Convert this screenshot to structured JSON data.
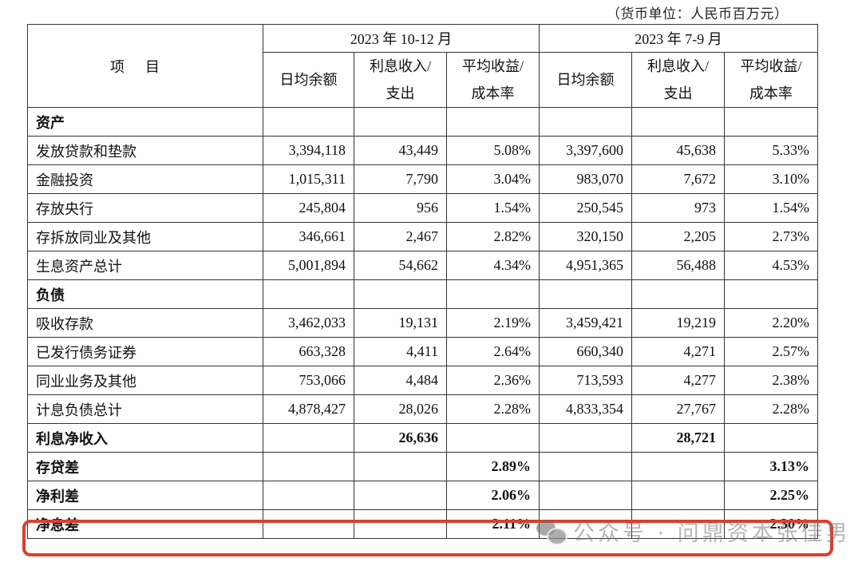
{
  "unit_note": "（货币单位：人民币百万元）",
  "header": {
    "item_label": "项目",
    "periods": [
      {
        "label": "2023 年 10-12 月"
      },
      {
        "label": "2023 年 7-9 月"
      }
    ],
    "columns": [
      {
        "line1": "日均余额",
        "line2": ""
      },
      {
        "line1": "利息收入/",
        "line2": "支出"
      },
      {
        "line1": "平均收益/",
        "line2": "成本率"
      },
      {
        "line1": "日均余额",
        "line2": ""
      },
      {
        "line1": "利息收入/",
        "line2": "支出"
      },
      {
        "line1": "平均收益/",
        "line2": "成本率"
      }
    ]
  },
  "rows": [
    {
      "label": "资产",
      "values": [
        "",
        "",
        "",
        "",
        "",
        ""
      ]
    },
    {
      "label": "发放贷款和垫款",
      "values": [
        "3,394,118",
        "43,449",
        "5.08%",
        "3,397,600",
        "45,638",
        "5.33%"
      ]
    },
    {
      "label": "金融投资",
      "values": [
        "1,015,311",
        "7,790",
        "3.04%",
        "983,070",
        "7,672",
        "3.10%"
      ]
    },
    {
      "label": "存放央行",
      "values": [
        "245,804",
        "956",
        "1.54%",
        "250,545",
        "973",
        "1.54%"
      ]
    },
    {
      "label": "存拆放同业及其他",
      "values": [
        "346,661",
        "2,467",
        "2.82%",
        "320,150",
        "2,205",
        "2.73%"
      ]
    },
    {
      "label": "生息资产总计",
      "values": [
        "5,001,894",
        "54,662",
        "4.34%",
        "4,951,365",
        "56,488",
        "4.53%"
      ]
    },
    {
      "label": "负债",
      "values": [
        "",
        "",
        "",
        "",
        "",
        ""
      ]
    },
    {
      "label": "吸收存款",
      "values": [
        "3,462,033",
        "19,131",
        "2.19%",
        "3,459,421",
        "19,219",
        "2.20%"
      ]
    },
    {
      "label": "已发行债务证券",
      "values": [
        "663,328",
        "4,411",
        "2.64%",
        "660,340",
        "4,271",
        "2.57%"
      ]
    },
    {
      "label": "同业业务及其他",
      "values": [
        "753,066",
        "4,484",
        "2.36%",
        "713,593",
        "4,277",
        "2.38%"
      ]
    },
    {
      "label": "计息负债总计",
      "values": [
        "4,878,427",
        "28,026",
        "2.28%",
        "4,833,354",
        "27,767",
        "2.28%"
      ]
    },
    {
      "label": "利息净收入",
      "values": [
        "",
        "26,636",
        "",
        "",
        "28,721",
        ""
      ]
    },
    {
      "label": "存贷差",
      "values": [
        "",
        "",
        "2.89%",
        "",
        "",
        "3.13%"
      ]
    },
    {
      "label": "净利差",
      "values": [
        "",
        "",
        "2.06%",
        "",
        "",
        "2.25%"
      ]
    },
    {
      "label": "净息差",
      "values": [
        "",
        "",
        "2.11%",
        "",
        "",
        "2.30%"
      ]
    }
  ],
  "highlight": {
    "row_label": "净息差",
    "color": "#d9402f"
  },
  "watermark": {
    "icon": "wechat-icon",
    "text": "公众号 · 问鼎资本张佳男"
  }
}
